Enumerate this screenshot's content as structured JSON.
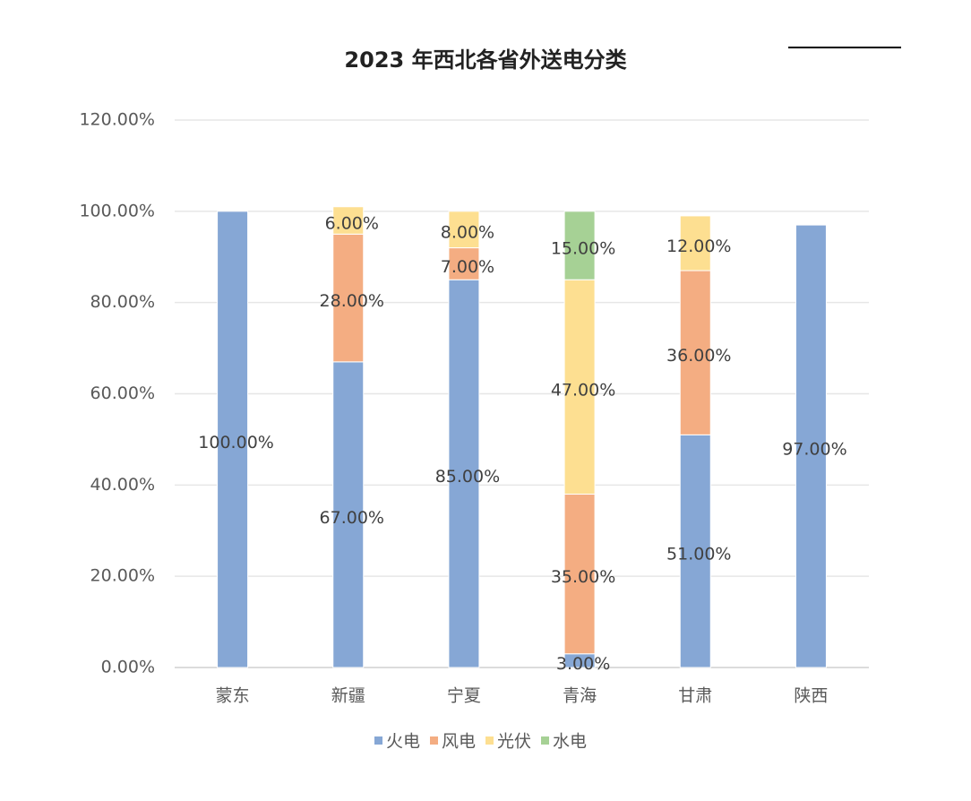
{
  "chart_data": {
    "type": "stacked_bar",
    "title": "2023 年西北各省外送电分类",
    "categories": [
      "蒙东",
      "新疆",
      "宁夏",
      "青海",
      "甘肃",
      "陕西"
    ],
    "series": [
      {
        "name": "火电",
        "color": "#86a7d5",
        "values": [
          100,
          67,
          85,
          3,
          51,
          97
        ],
        "value_labels": [
          "100.00%",
          "67.00%",
          "85.00%",
          "3.00%",
          "51.00%",
          "97.00%"
        ]
      },
      {
        "name": "风电",
        "color": "#f4ad82",
        "values": [
          null,
          28,
          7,
          35,
          36,
          null
        ],
        "value_labels": [
          null,
          "28.00%",
          "7.00%",
          "35.00%",
          "36.00%",
          null
        ]
      },
      {
        "name": "光伏",
        "color": "#fddf91",
        "values": [
          null,
          6,
          8,
          47,
          12,
          null
        ],
        "value_labels": [
          null,
          "6.00%",
          "8.00%",
          "47.00%",
          "12.00%",
          null
        ]
      },
      {
        "name": "水电",
        "color": "#a6d195",
        "values": [
          null,
          null,
          null,
          15,
          null,
          null
        ],
        "value_labels": [
          null,
          null,
          null,
          "15.00%",
          null,
          null
        ]
      }
    ],
    "ylim": [
      0,
      120
    ],
    "yticks": [
      {
        "value": 0,
        "label": "0.00%"
      },
      {
        "value": 20,
        "label": "20.00%"
      },
      {
        "value": 40,
        "label": "40.00%"
      },
      {
        "value": 60,
        "label": "60.00%"
      },
      {
        "value": 80,
        "label": "80.00%"
      },
      {
        "value": 100,
        "label": "100.00%"
      },
      {
        "value": 120,
        "label": "120.00%"
      }
    ],
    "grid": true
  }
}
